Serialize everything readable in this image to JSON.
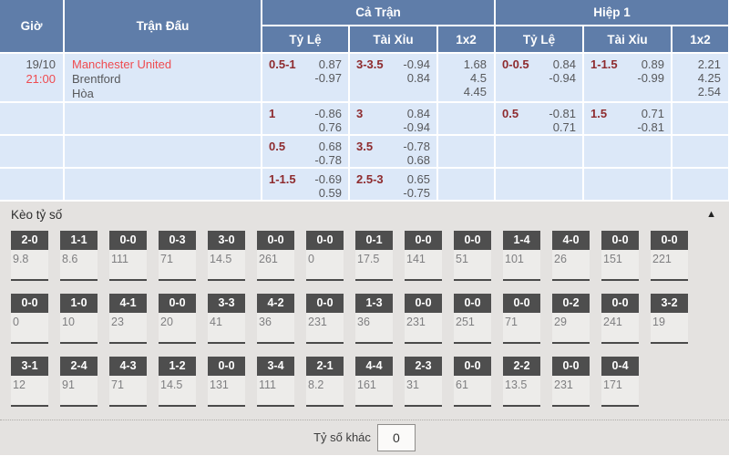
{
  "colors": {
    "header-bg": "#5f7da9",
    "row-bg": "#dce8f8",
    "accent-red": "#ef4b50",
    "line-maroon": "#8e2b2e",
    "odds-text": "#57585b",
    "section-bg": "#e4e2e0",
    "score-head-bg": "#4e4e4e",
    "score-val-bg": "#edecea",
    "score-underline": "#4a4a4a"
  },
  "odds_table": {
    "headers": {
      "time": "Giờ",
      "match": "Trận Đấu",
      "full_match": "Cả Trận",
      "first_half": "Hiệp 1",
      "handicap": "Tỷ Lệ",
      "over_under": "Tài Xỉu",
      "one_x_two": "1x2"
    },
    "match": {
      "date": "19/10",
      "kickoff": "21:00",
      "home": "Manchester United",
      "away": "Brentford",
      "draw": "Hòa"
    },
    "rows": [
      {
        "full": {
          "handicap": {
            "line": "0.5-1",
            "odds": [
              "0.87",
              "-0.97"
            ]
          },
          "ou": {
            "line": "3-3.5",
            "odds": [
              "-0.94",
              "0.84"
            ]
          },
          "x12": [
            "1.68",
            "4.5",
            "4.45"
          ]
        },
        "half": {
          "handicap": {
            "line": "0-0.5",
            "odds": [
              "0.84",
              "-0.94"
            ]
          },
          "ou": {
            "line": "1-1.5",
            "odds": [
              "0.89",
              "-0.99"
            ]
          },
          "x12": [
            "2.21",
            "4.25",
            "2.54"
          ]
        }
      },
      {
        "full": {
          "handicap": {
            "line": "1",
            "odds": [
              "-0.86",
              "0.76"
            ]
          },
          "ou": {
            "line": "3",
            "odds": [
              "0.84",
              "-0.94"
            ]
          },
          "x12": []
        },
        "half": {
          "handicap": {
            "line": "0.5",
            "odds": [
              "-0.81",
              "0.71"
            ]
          },
          "ou": {
            "line": "1.5",
            "odds": [
              "0.71",
              "-0.81"
            ]
          },
          "x12": []
        }
      },
      {
        "full": {
          "handicap": {
            "line": "0.5",
            "odds": [
              "0.68",
              "-0.78"
            ]
          },
          "ou": {
            "line": "3.5",
            "odds": [
              "-0.78",
              "0.68"
            ]
          },
          "x12": []
        },
        "half": {
          "handicap": null,
          "ou": null,
          "x12": []
        }
      },
      {
        "full": {
          "handicap": {
            "line": "1-1.5",
            "odds": [
              "-0.69",
              "0.59"
            ]
          },
          "ou": {
            "line": "2.5-3",
            "odds": [
              "0.65",
              "-0.75"
            ]
          },
          "x12": []
        },
        "half": {
          "handicap": null,
          "ou": null,
          "x12": []
        }
      }
    ]
  },
  "score_section": {
    "title": "Kèo tỷ số",
    "collapse_icon": "▲",
    "rows": [
      [
        {
          "score": "2-0",
          "odds": "9.8"
        },
        {
          "score": "1-1",
          "odds": "8.6"
        },
        {
          "score": "0-0",
          "odds": "111"
        },
        {
          "score": "0-3",
          "odds": "71"
        },
        {
          "score": "3-0",
          "odds": "14.5"
        },
        {
          "score": "0-0",
          "odds": "261"
        },
        {
          "score": "0-0",
          "odds": "0"
        },
        {
          "score": "0-1",
          "odds": "17.5"
        },
        {
          "score": "0-0",
          "odds": "141"
        },
        {
          "score": "0-0",
          "odds": "51"
        },
        {
          "score": "1-4",
          "odds": "101"
        },
        {
          "score": "4-0",
          "odds": "26"
        },
        {
          "score": "0-0",
          "odds": "151"
        },
        {
          "score": "0-0",
          "odds": "221"
        }
      ],
      [
        {
          "score": "0-0",
          "odds": "0"
        },
        {
          "score": "1-0",
          "odds": "10"
        },
        {
          "score": "4-1",
          "odds": "23"
        },
        {
          "score": "0-0",
          "odds": "20"
        },
        {
          "score": "3-3",
          "odds": "41"
        },
        {
          "score": "4-2",
          "odds": "36"
        },
        {
          "score": "0-0",
          "odds": "231"
        },
        {
          "score": "1-3",
          "odds": "36"
        },
        {
          "score": "0-0",
          "odds": "231"
        },
        {
          "score": "0-0",
          "odds": "251"
        },
        {
          "score": "0-0",
          "odds": "71"
        },
        {
          "score": "0-2",
          "odds": "29"
        },
        {
          "score": "0-0",
          "odds": "241"
        },
        {
          "score": "3-2",
          "odds": "19"
        }
      ],
      [
        {
          "score": "3-1",
          "odds": "12"
        },
        {
          "score": "2-4",
          "odds": "91"
        },
        {
          "score": "4-3",
          "odds": "71"
        },
        {
          "score": "1-2",
          "odds": "14.5"
        },
        {
          "score": "0-0",
          "odds": "131"
        },
        {
          "score": "3-4",
          "odds": "111"
        },
        {
          "score": "2-1",
          "odds": "8.2"
        },
        {
          "score": "4-4",
          "odds": "161"
        },
        {
          "score": "2-3",
          "odds": "31"
        },
        {
          "score": "0-0",
          "odds": "61"
        },
        {
          "score": "2-2",
          "odds": "13.5"
        },
        {
          "score": "0-0",
          "odds": "231"
        },
        {
          "score": "0-4",
          "odds": "171"
        }
      ]
    ],
    "other_label": "Tỷ số khác",
    "other_value": "0"
  }
}
